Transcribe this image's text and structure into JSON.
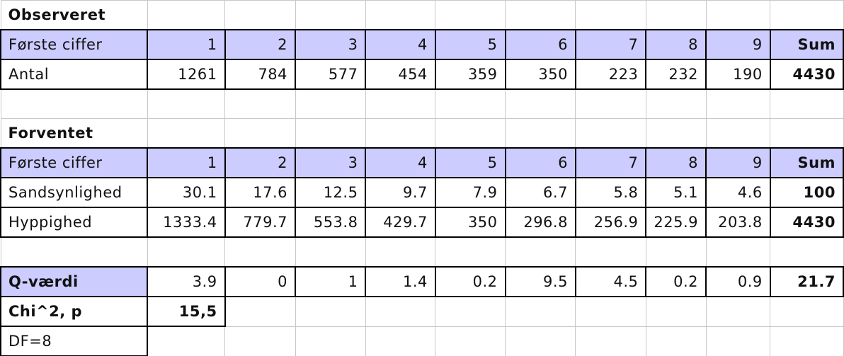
{
  "observed": {
    "title": "Observeret",
    "header": [
      "Første ciffer",
      "1",
      "2",
      "3",
      "4",
      "5",
      "6",
      "7",
      "8",
      "9",
      "Sum"
    ],
    "rows": [
      [
        "Antal",
        "1261",
        "784",
        "577",
        "454",
        "359",
        "350",
        "223",
        "232",
        "190",
        "4430"
      ]
    ]
  },
  "expected": {
    "title": "Forventet",
    "header": [
      "Første ciffer",
      "1",
      "2",
      "3",
      "4",
      "5",
      "6",
      "7",
      "8",
      "9",
      "Sum"
    ],
    "rows": [
      [
        "Sandsynlighed",
        "30.1",
        "17.6",
        "12.5",
        "9.7",
        "7.9",
        "6.7",
        "5.8",
        "5.1",
        "4.6",
        "100"
      ],
      [
        "Hyppighed",
        "1333.4",
        "779.7",
        "553.8",
        "429.7",
        "350",
        "296.8",
        "256.9",
        "225.9",
        "203.8",
        "4430"
      ]
    ]
  },
  "q_row": [
    "Q-værdi",
    "3.9",
    "0",
    "1",
    "1.4",
    "0.2",
    "9.5",
    "4.5",
    "0.2",
    "0.9",
    "21.7"
  ],
  "chi_row": [
    "Chi^2, p",
    "15,5"
  ],
  "df": "DF=8"
}
